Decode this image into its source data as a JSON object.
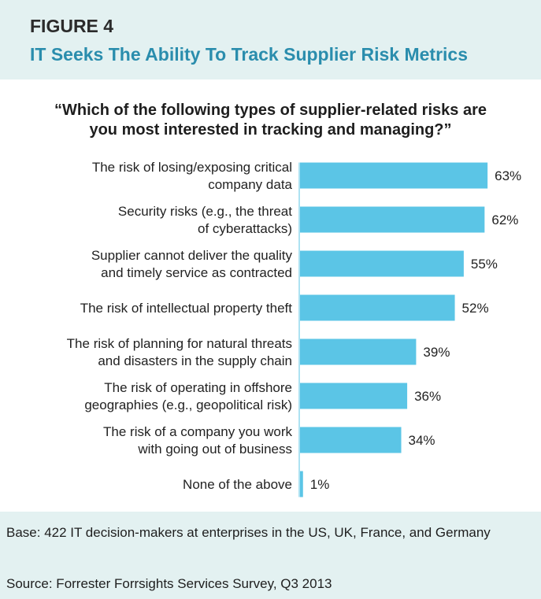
{
  "header": {
    "figure_label": "FIGURE 4",
    "title": "IT Seeks The Ability To Track Supplier Risk Metrics"
  },
  "chart_data": {
    "type": "bar",
    "orientation": "horizontal",
    "title_lines": [
      "“Which of the following types of supplier-related risks are",
      "you most interested in tracking and managing?”"
    ],
    "categories": [
      [
        "The risk of losing/exposing critical",
        "company data"
      ],
      [
        "Security risks (e.g., the threat",
        "of cyberattacks)"
      ],
      [
        "Supplier cannot deliver the quality",
        "and timely service as contracted"
      ],
      [
        "The risk of intellectual property theft"
      ],
      [
        "The risk of planning for natural threats",
        "and disasters in the supply chain"
      ],
      [
        "The risk of operating in offshore",
        "geographies (e.g., geopolitical risk)"
      ],
      [
        "The risk of a company you work",
        "with going out of business"
      ],
      [
        "None of the above"
      ]
    ],
    "values": [
      63,
      62,
      55,
      52,
      39,
      36,
      34,
      1
    ],
    "value_labels": [
      "63%",
      "62%",
      "55%",
      "52%",
      "39%",
      "36%",
      "34%",
      "1%"
    ],
    "ylim": [
      0,
      100
    ],
    "grid": false,
    "legend": "none",
    "colors": {
      "bar": "#5bc5e6",
      "title": "#2a8dad",
      "panel": "#e3f1f1"
    }
  },
  "footer": {
    "base": "Base: 422 IT decision-makers at enterprises in the US, UK, France, and Germany",
    "source": "Source: Forrester Forrsights Services Survey, Q3 2013"
  }
}
